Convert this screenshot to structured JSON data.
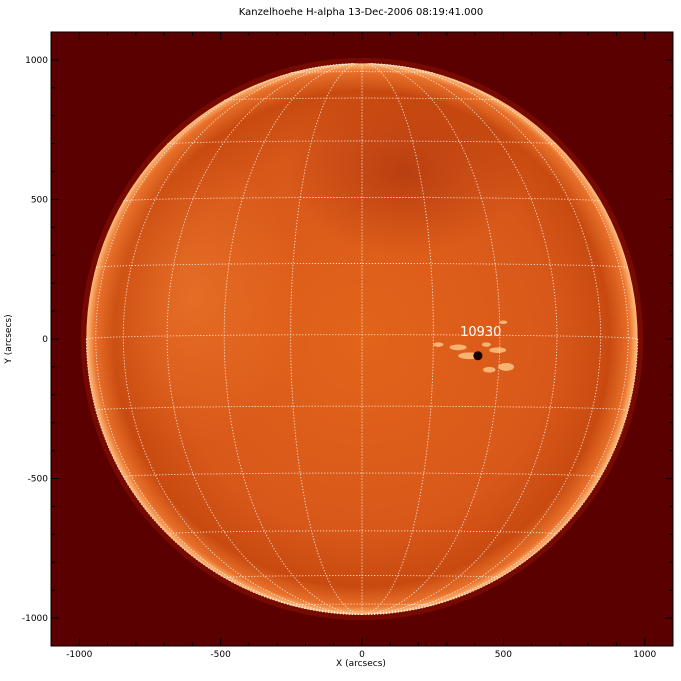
{
  "title": "Kanzelhoehe H-alpha 13-Dec-2006 08:19:41.000",
  "xlabel": "X (arcsecs)",
  "ylabel": "Y (arcsecs)",
  "x_ticks": [
    -1000,
    -500,
    0,
    500,
    1000
  ],
  "y_ticks": [
    -1000,
    -500,
    0,
    500,
    1000
  ],
  "x_range": [
    -1100,
    1100
  ],
  "y_range": [
    -1100,
    1100
  ],
  "solar_radius_arcsec": 975,
  "grid_spacing_deg": 15,
  "b0_deg": -0.9,
  "active_region": {
    "label": "10930",
    "x": 420,
    "y": 0
  },
  "colors": {
    "background": "#5a0000",
    "disk_center": "#e8741c",
    "disk_mid": "#d05010",
    "disk_limb": "#ffb070",
    "grid": "#ffffff"
  }
}
